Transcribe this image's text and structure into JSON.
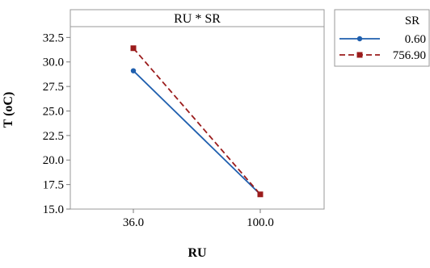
{
  "chart_data": {
    "type": "line",
    "title": "RU * SR",
    "xlabel": "RU",
    "ylabel": "T (oC)",
    "categories": [
      "36.0",
      "100.0"
    ],
    "ylim": [
      15.0,
      33.6
    ],
    "yticks": [
      15.0,
      17.5,
      20.0,
      22.5,
      25.0,
      27.5,
      30.0,
      32.5
    ],
    "ytick_labels": [
      "15.0",
      "17.5",
      "20.0",
      "22.5",
      "25.0",
      "27.5",
      "30.0",
      "32.5"
    ],
    "grid": false,
    "legend_position": "right",
    "legend_title": "SR",
    "series": [
      {
        "name": "0.60",
        "values": [
          29.1,
          16.5
        ],
        "color": "#1f5fae",
        "line_style": "solid",
        "marker": "circle"
      },
      {
        "name": "756.90",
        "values": [
          31.4,
          16.5
        ],
        "color": "#9b1c1c",
        "line_style": "dashed",
        "marker": "square"
      }
    ]
  }
}
